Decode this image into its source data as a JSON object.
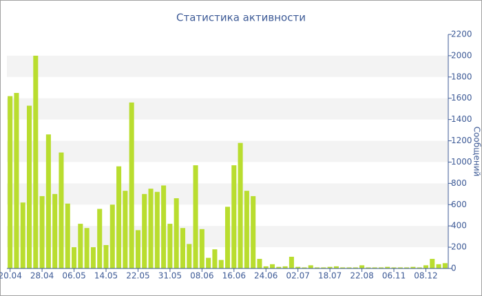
{
  "chart_data": {
    "type": "bar",
    "title": "Статистика активности",
    "y_label": "Сообщений",
    "categories": [
      "20.04",
      null,
      null,
      null,
      null,
      "28.04",
      null,
      null,
      null,
      null,
      "06.05",
      null,
      null,
      null,
      null,
      "14.05",
      null,
      null,
      null,
      null,
      "22.05",
      null,
      null,
      null,
      null,
      "31.05",
      null,
      null,
      null,
      null,
      "08.06",
      null,
      null,
      null,
      null,
      "16.06",
      null,
      null,
      null,
      null,
      "24.06",
      null,
      null,
      null,
      null,
      "02.07",
      null,
      null,
      null,
      null,
      "18.07",
      null,
      null,
      null,
      null,
      "22.08",
      null,
      null,
      null,
      null,
      "06.11",
      null,
      null,
      null,
      null,
      "08.12",
      null,
      null,
      null
    ],
    "values": [
      1620,
      1650,
      620,
      1530,
      2000,
      680,
      1260,
      700,
      1090,
      610,
      200,
      420,
      380,
      200,
      560,
      220,
      600,
      960,
      730,
      1560,
      360,
      700,
      750,
      720,
      780,
      420,
      660,
      380,
      230,
      970,
      370,
      100,
      180,
      80,
      580,
      970,
      1180,
      730,
      680,
      90,
      20,
      40,
      15,
      20,
      110,
      15,
      10,
      30,
      10,
      10,
      15,
      20,
      10,
      10,
      10,
      30,
      10,
      10,
      10,
      15,
      10,
      10,
      10,
      15,
      10,
      30,
      90,
      40,
      50
    ],
    "color": "#b9dd2f",
    "ylim": [
      0,
      2200
    ],
    "yticks": [
      0,
      200,
      400,
      600,
      800,
      1000,
      1200,
      1400,
      1600,
      1800,
      2000,
      2200
    ],
    "grid": true
  }
}
